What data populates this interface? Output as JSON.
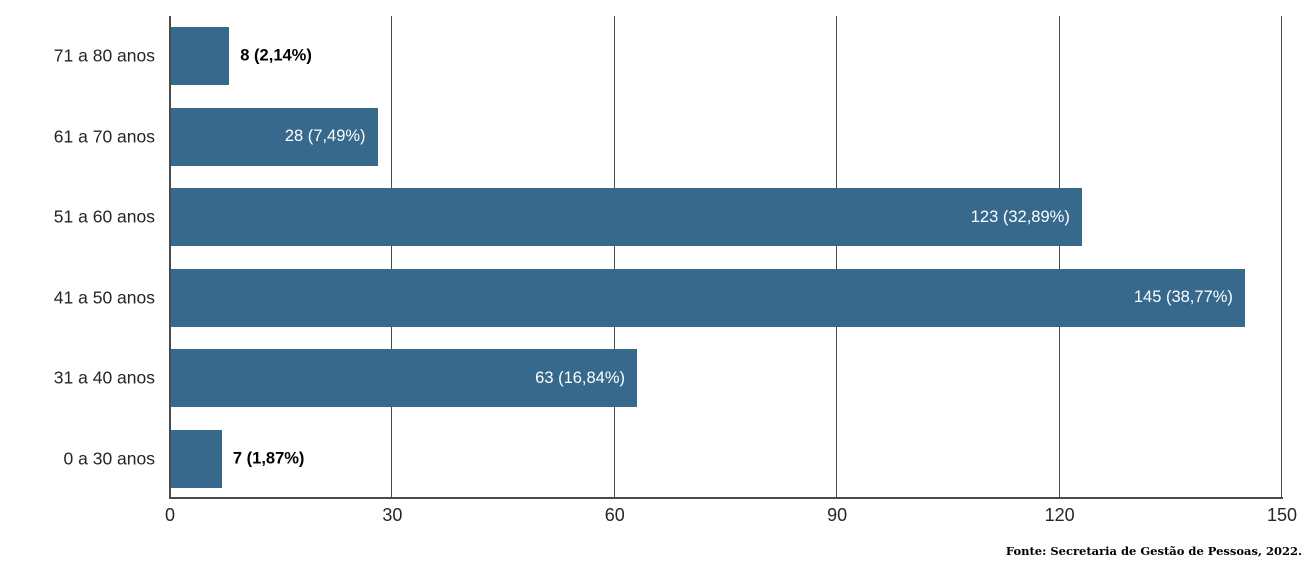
{
  "chart_data": {
    "type": "bar",
    "orientation": "horizontal",
    "title": "",
    "xlabel": "",
    "ylabel": "",
    "categories": [
      "71 a 80 anos",
      "61 a 70 anos",
      "51 a 60 anos",
      "41 a 50 anos",
      "31 a 40 anos",
      "0 a 30 anos"
    ],
    "values": [
      8,
      28,
      123,
      145,
      63,
      7
    ],
    "value_labels": [
      "8 (2,14%)",
      "28 (7,49%)",
      "123 (32,89%)",
      "145 (38,77%)",
      "63 (16,84%)",
      "7 (1,87%)"
    ],
    "label_placement": [
      "outside",
      "inside",
      "inside",
      "inside",
      "inside",
      "outside"
    ],
    "x_ticks": [
      0,
      30,
      60,
      90,
      120,
      150
    ],
    "xlim": [
      0,
      150
    ],
    "grid": "vertical-only",
    "legend": "none",
    "bar_color": "#36698C",
    "axis_color": "#4A4A4A",
    "inside_label_color": "#FFFFFF",
    "outside_label_color": "#000000"
  },
  "footer": {
    "source": "Fonte: Secretaria de Gestão de Pessoas, 2022."
  }
}
